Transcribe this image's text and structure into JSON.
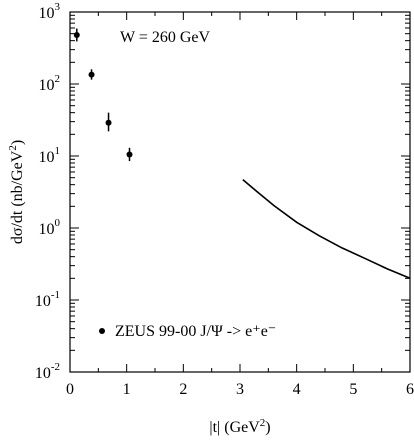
{
  "chart_data": {
    "type": "scatter",
    "annotation": "W = 260 GeV",
    "xlabel": "|t| (GeV²)",
    "ylabel": "dσ/dt (nb/GeV²)",
    "xlim": [
      0,
      6
    ],
    "ylim": [
      0.01,
      1000
    ],
    "yscale": "log",
    "grid": false,
    "legend_position": "bottom-left",
    "x_ticks": [
      "0",
      "1",
      "2",
      "3",
      "4",
      "5",
      "6"
    ],
    "y_ticks": [
      {
        "base": "10",
        "exp": "-2"
      },
      {
        "base": "10",
        "exp": "-1"
      },
      {
        "base": "10",
        "exp": "0"
      },
      {
        "base": "10",
        "exp": "1"
      },
      {
        "base": "10",
        "exp": "2"
      },
      {
        "base": "10",
        "exp": "3"
      }
    ],
    "series": [
      {
        "name": "ZEUS 99-00 J/Ψ -> e⁺e⁻",
        "kind": "points",
        "x": [
          0.12,
          0.38,
          0.68,
          1.05
        ],
        "y": [
          480,
          135,
          29,
          10.5
        ],
        "err_low": [
          390,
          115,
          22,
          8.5
        ],
        "err_high": [
          590,
          160,
          40,
          13
        ]
      },
      {
        "kind": "line",
        "x": [
          3.05,
          3.3,
          3.6,
          4.0,
          4.4,
          4.8,
          5.2,
          5.6,
          6.0
        ],
        "y": [
          4.7,
          3.2,
          2.05,
          1.2,
          0.78,
          0.53,
          0.38,
          0.27,
          0.2
        ]
      }
    ]
  }
}
